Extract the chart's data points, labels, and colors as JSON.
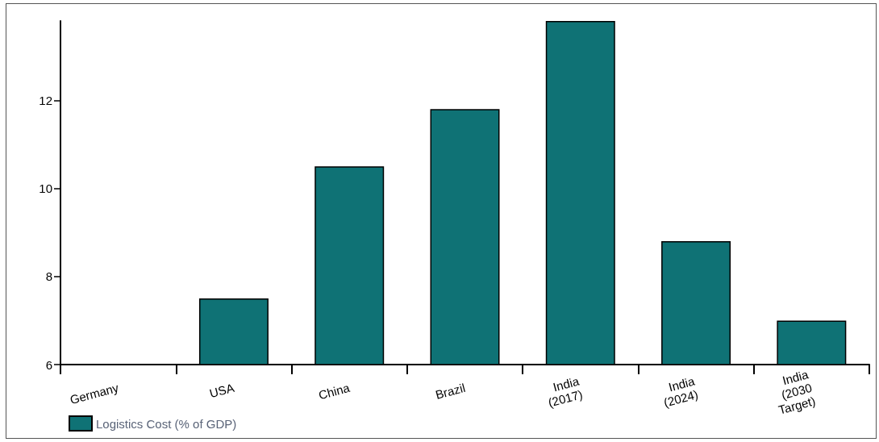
{
  "chart_data": {
    "type": "bar",
    "categories": [
      "Germany",
      "USA",
      "China",
      "Brazil",
      "India\n(2017)",
      "India\n(2024)",
      "India\n(2030\nTarget)"
    ],
    "series": [
      {
        "name": "Logistics Cost (% of GDP)",
        "color": "#0f7275",
        "values": [
          null,
          7.5,
          10.5,
          11.8,
          13.8,
          8.8,
          7.0
        ]
      }
    ],
    "ylim": [
      6,
      13.8
    ],
    "yticks": [
      6,
      8,
      10,
      12
    ],
    "grid": false,
    "legend": "bottom left"
  }
}
